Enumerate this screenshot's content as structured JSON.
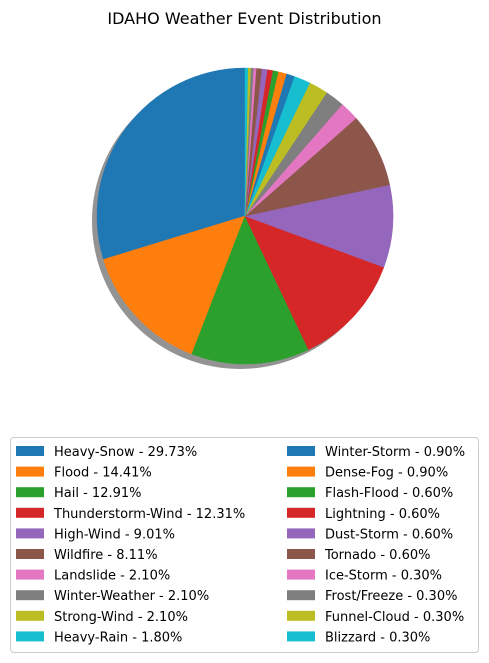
{
  "chart_data": {
    "type": "pie",
    "title": "IDAHO Weather Event Distribution",
    "shadow": true,
    "start_angle_deg": 90,
    "direction": "counterclockwise",
    "legend_placement": "bottom",
    "legend_columns": 2,
    "slices": [
      {
        "label": "Heavy-Snow - 29.73%",
        "name": "Heavy-Snow",
        "value": 29.73,
        "color": "#1f77b4"
      },
      {
        "label": "Flood - 14.41%",
        "name": "Flood",
        "value": 14.41,
        "color": "#ff7f0e"
      },
      {
        "label": "Hail - 12.91%",
        "name": "Hail",
        "value": 12.91,
        "color": "#2ca02c"
      },
      {
        "label": "Thunderstorm-Wind - 12.31%",
        "name": "Thunderstorm-Wind",
        "value": 12.31,
        "color": "#d62728"
      },
      {
        "label": "High-Wind - 9.01%",
        "name": "High-Wind",
        "value": 9.01,
        "color": "#9467bd"
      },
      {
        "label": "Wildfire - 8.11%",
        "name": "Wildfire",
        "value": 8.11,
        "color": "#8c564b"
      },
      {
        "label": "Landslide - 2.10%",
        "name": "Landslide",
        "value": 2.1,
        "color": "#e377c2"
      },
      {
        "label": "Winter-Weather - 2.10%",
        "name": "Winter-Weather",
        "value": 2.1,
        "color": "#7f7f7f"
      },
      {
        "label": "Strong-Wind - 2.10%",
        "name": "Strong-Wind",
        "value": 2.1,
        "color": "#bcbd22"
      },
      {
        "label": "Heavy-Rain - 1.80%",
        "name": "Heavy-Rain",
        "value": 1.8,
        "color": "#17becf"
      },
      {
        "label": "Winter-Storm - 0.90%",
        "name": "Winter-Storm",
        "value": 0.9,
        "color": "#1f77b4"
      },
      {
        "label": "Dense-Fog - 0.90%",
        "name": "Dense-Fog",
        "value": 0.9,
        "color": "#ff7f0e"
      },
      {
        "label": "Flash-Flood - 0.60%",
        "name": "Flash-Flood",
        "value": 0.6,
        "color": "#2ca02c"
      },
      {
        "label": "Lightning - 0.60%",
        "name": "Lightning",
        "value": 0.6,
        "color": "#d62728"
      },
      {
        "label": "Dust-Storm - 0.60%",
        "name": "Dust-Storm",
        "value": 0.6,
        "color": "#9467bd"
      },
      {
        "label": "Tornado - 0.60%",
        "name": "Tornado",
        "value": 0.6,
        "color": "#8c564b"
      },
      {
        "label": "Ice-Storm - 0.30%",
        "name": "Ice-Storm",
        "value": 0.3,
        "color": "#e377c2"
      },
      {
        "label": "Frost/Freeze - 0.30%",
        "name": "Frost/Freeze",
        "value": 0.3,
        "color": "#7f7f7f"
      },
      {
        "label": "Funnel-Cloud - 0.30%",
        "name": "Funnel-Cloud",
        "value": 0.3,
        "color": "#bcbd22"
      },
      {
        "label": "Blizzard - 0.30%",
        "name": "Blizzard",
        "value": 0.3,
        "color": "#17becf"
      }
    ]
  }
}
